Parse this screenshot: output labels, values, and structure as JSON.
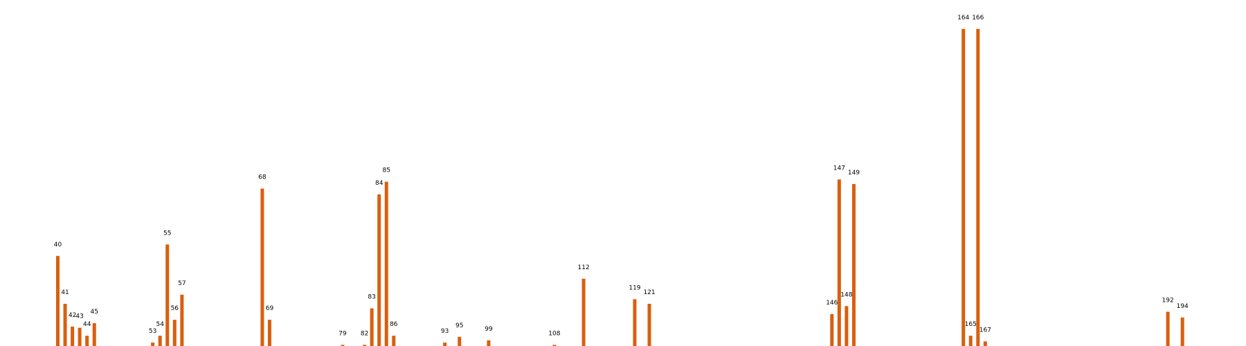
{
  "chart_data": {
    "type": "bar",
    "title": "",
    "xlabel": "",
    "ylabel": "",
    "bar_color": "#d95f0e",
    "ylim": [
      0,
      290
    ],
    "grid": false,
    "legend": "none",
    "points": [
      {
        "x": 40,
        "value": 79
      },
      {
        "x": 41,
        "value": 37
      },
      {
        "x": 42,
        "value": 17
      },
      {
        "x": 43,
        "value": 16
      },
      {
        "x": 44,
        "value": 9
      },
      {
        "x": 45,
        "value": 20
      },
      {
        "x": 53,
        "value": 3
      },
      {
        "x": 54,
        "value": 9
      },
      {
        "x": 55,
        "value": 89
      },
      {
        "x": 56,
        "value": 23
      },
      {
        "x": 57,
        "value": 45
      },
      {
        "x": 68,
        "value": 138
      },
      {
        "x": 69,
        "value": 23
      },
      {
        "x": 79,
        "value": 1
      },
      {
        "x": 82,
        "value": 1
      },
      {
        "x": 83,
        "value": 33
      },
      {
        "x": 84,
        "value": 133
      },
      {
        "x": 85,
        "value": 144
      },
      {
        "x": 86,
        "value": 9
      },
      {
        "x": 93,
        "value": 3
      },
      {
        "x": 95,
        "value": 8
      },
      {
        "x": 99,
        "value": 5
      },
      {
        "x": 108,
        "value": 1
      },
      {
        "x": 112,
        "value": 59
      },
      {
        "x": 119,
        "value": 41
      },
      {
        "x": 121,
        "value": 37
      },
      {
        "x": 146,
        "value": 28
      },
      {
        "x": 147,
        "value": 146
      },
      {
        "x": 148,
        "value": 35
      },
      {
        "x": 149,
        "value": 142
      },
      {
        "x": 164,
        "value": 278
      },
      {
        "x": 165,
        "value": 9
      },
      {
        "x": 166,
        "value": 278
      },
      {
        "x": 167,
        "value": 4
      },
      {
        "x": 192,
        "value": 30
      },
      {
        "x": 194,
        "value": 25
      }
    ]
  }
}
